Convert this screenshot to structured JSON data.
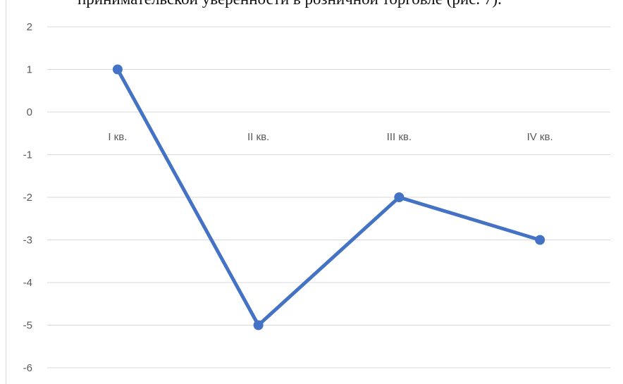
{
  "document": {
    "caption_fragment": "принимательской уверенности в розничной торговле (рис. 7)."
  },
  "chart_data": {
    "type": "line",
    "categories": [
      "I кв.",
      "II кв.",
      "III кв.",
      "IV кв."
    ],
    "series": [
      {
        "values": [
          1,
          -5,
          -2,
          -3
        ],
        "color": "#4472c4"
      }
    ],
    "ylim": [
      -6,
      2
    ],
    "y_ticks": [
      2,
      1,
      0,
      -1,
      -2,
      -3,
      -4,
      -5,
      -6
    ],
    "grid": true,
    "category_labels_position": "at-zero-line",
    "title": "",
    "xlabel": "",
    "ylabel": ""
  }
}
